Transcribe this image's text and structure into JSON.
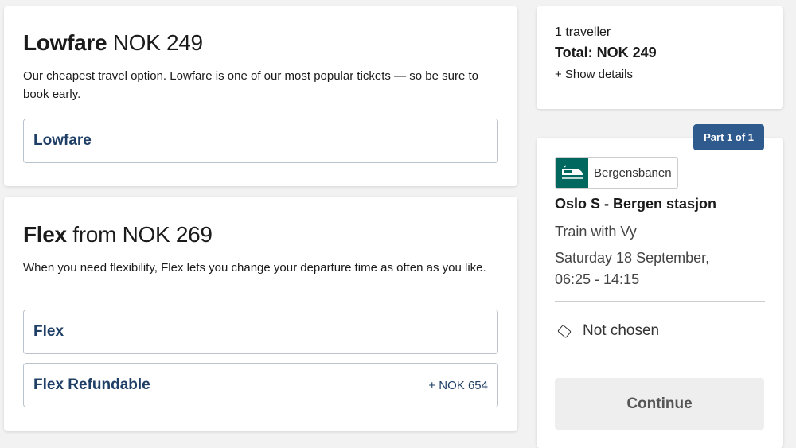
{
  "lowfare": {
    "title_bold": "Lowfare",
    "title_rest": " NOK 249",
    "description": "Our cheapest travel option. Lowfare is one of our most popular tickets — so be sure to book early.",
    "options": [
      {
        "name": "Lowfare"
      }
    ]
  },
  "flex": {
    "title_bold": "Flex",
    "title_rest": " from NOK 269",
    "description": "When you need flexibility, Flex lets you change your departure time as often as you like.",
    "options": [
      {
        "name": "Flex"
      },
      {
        "name": "Flex Refundable",
        "price": "+ NOK 654"
      }
    ]
  },
  "summary": {
    "travellers": "1 traveller",
    "total": "Total: NOK 249",
    "show_details": "+ Show details"
  },
  "trip": {
    "part_badge": "Part 1 of 1",
    "line_name": "Bergensbanen",
    "line_icon": "train-icon",
    "line_color": "#00685e",
    "route": "Oslo S - Bergen stasjon",
    "operator": "Train with Vy",
    "date": "Saturday 18 September,",
    "time": "06:25 - 14:15",
    "ticket_icon": "ticket-icon",
    "ticket_status": "Not chosen",
    "continue_label": "Continue"
  }
}
